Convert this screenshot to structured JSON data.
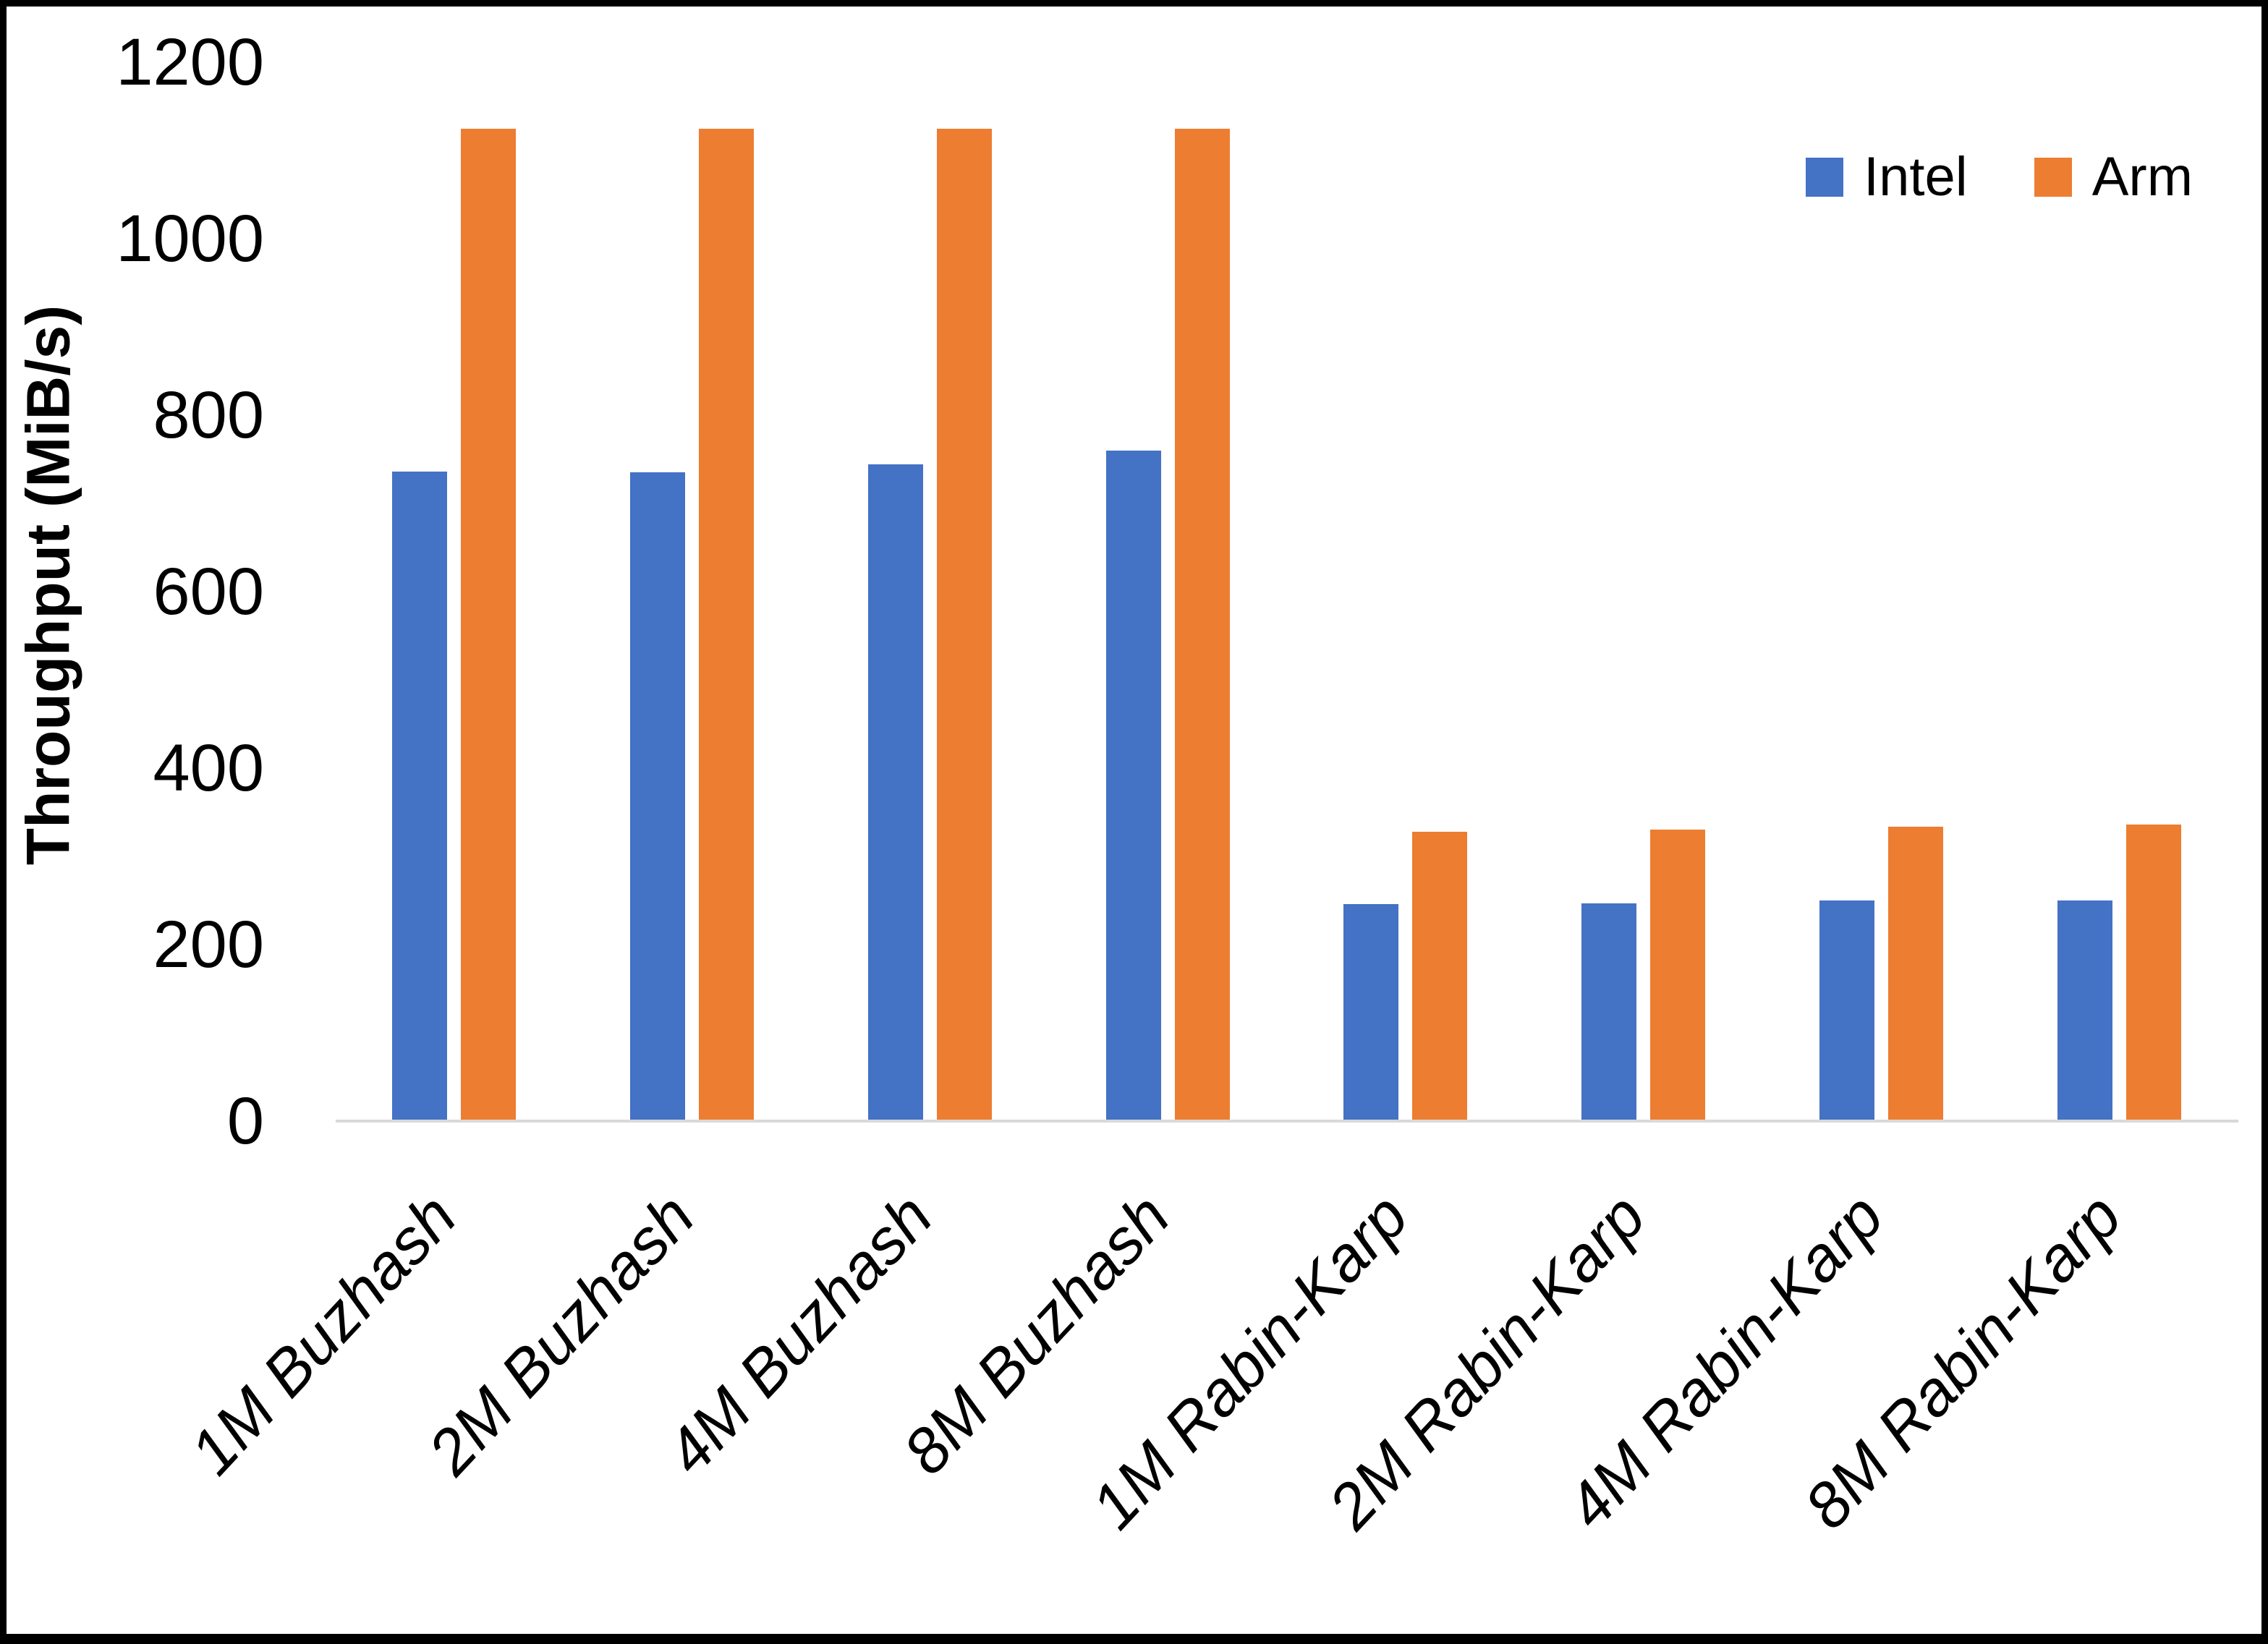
{
  "chart_data": {
    "type": "bar",
    "title": "",
    "xlabel": "",
    "ylabel": "Throughput (MiB/s)",
    "categories": [
      "1M Buzhash",
      "2M Buzhash",
      "4M Buzhash",
      "8M Buzhash",
      "1M Rabin-Karp",
      "2M Rabin-Karp",
      "4M Rabin-Karp",
      "8M Rabin-Karp"
    ],
    "series": [
      {
        "name": "Intel",
        "color": "#4472C4",
        "values": [
          736,
          735,
          744,
          760,
          246,
          247,
          250,
          250
        ]
      },
      {
        "name": "Arm",
        "color": "#ED7D31",
        "values": [
          1125,
          1125,
          1125,
          1125,
          328,
          330,
          334,
          336
        ]
      }
    ],
    "ylim": [
      0,
      1200
    ],
    "yticks": [
      0,
      200,
      400,
      600,
      800,
      1000,
      1200
    ],
    "grid": false,
    "legend_position": "top-right"
  },
  "legend": {
    "items": [
      {
        "label": "Intel",
        "color": "#4472C4"
      },
      {
        "label": "Arm",
        "color": "#ED7D31"
      }
    ]
  },
  "axis": {
    "baseline_color": "#D9D9D9"
  }
}
